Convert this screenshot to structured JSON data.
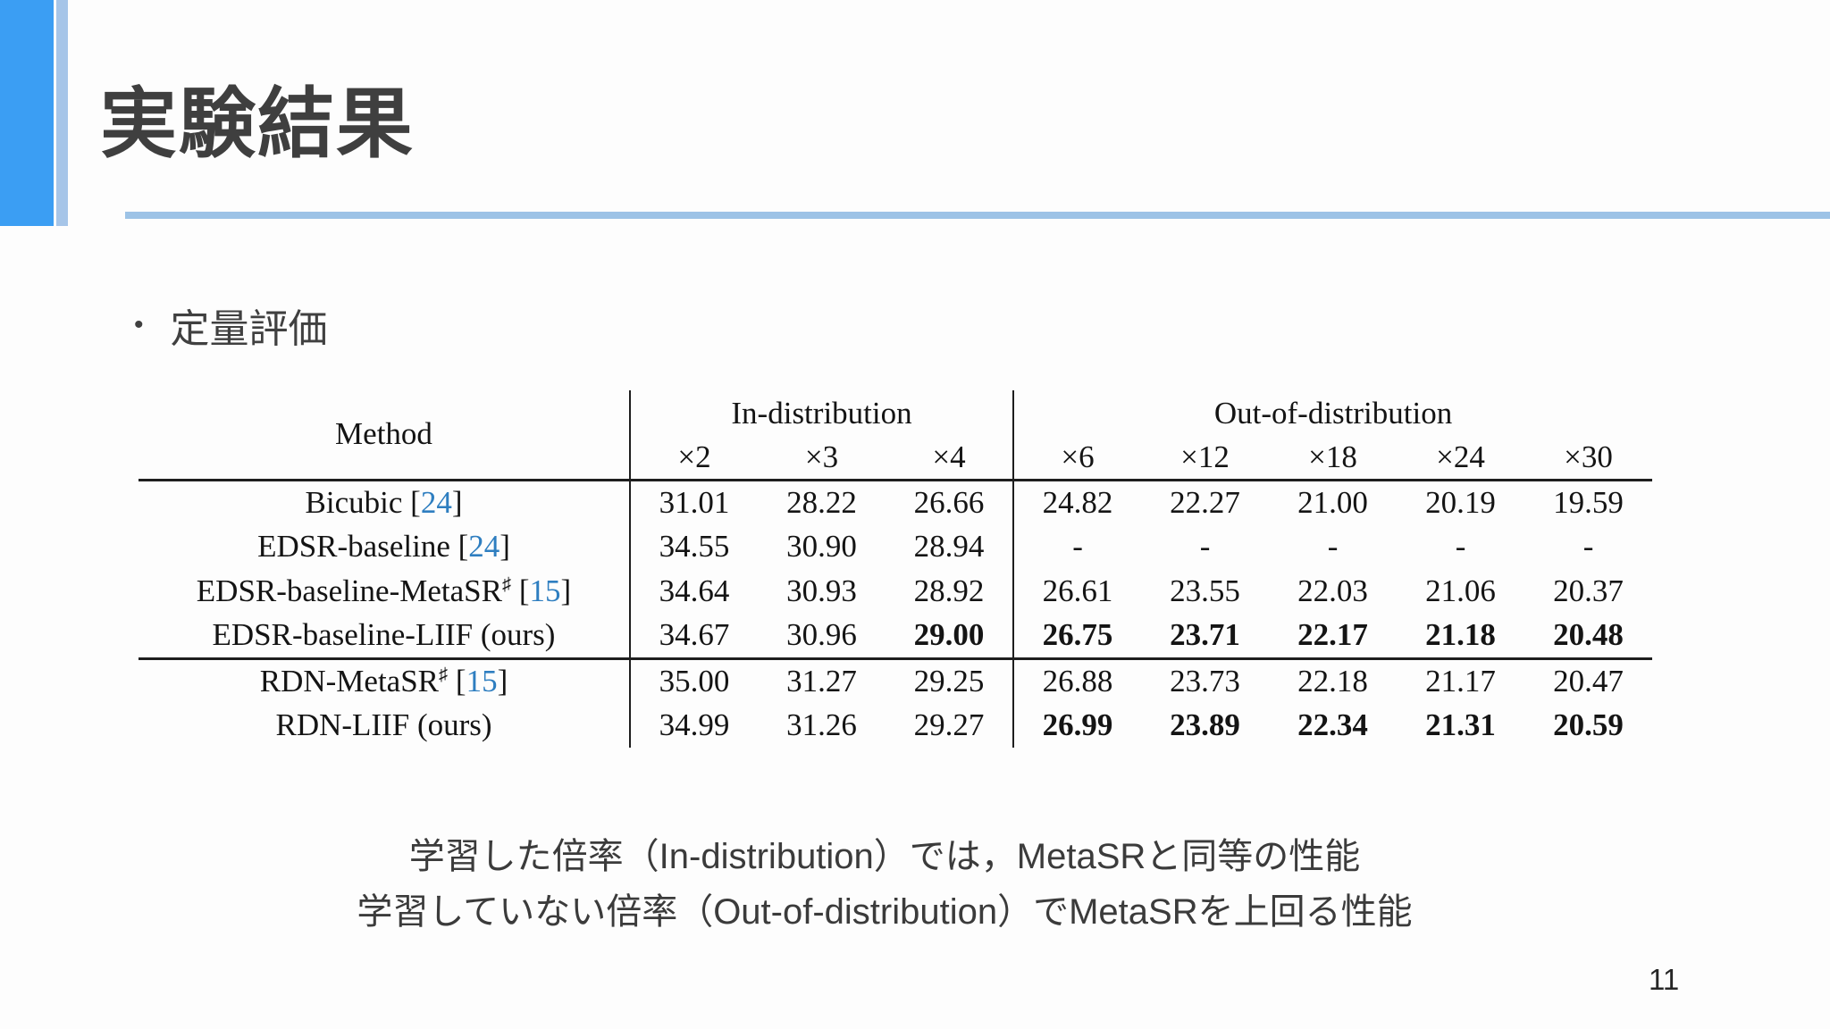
{
  "slide": {
    "title": "実験結果",
    "bullet_label": "定量評価",
    "caption_line1": "学習した倍率（In-distribution）では，MetaSRと同等の性能",
    "caption_line2": "学習していない倍率（Out-of-distribution）でMetaSRを上回る性能",
    "page_number": "11"
  },
  "colors": {
    "accent_bar_blue": "#3b9ef3",
    "accent_stripe_blue": "#a6c5e8",
    "title_underline_blue": "#9dc3e6",
    "citation_blue": "#2e7ec0",
    "title_text_gray": "#3f3f3f",
    "table_text_black": "#141414"
  },
  "table": {
    "method_header": "Method",
    "groups": [
      {
        "label": "In-distribution",
        "span": 3
      },
      {
        "label": "Out-of-distribution",
        "span": 5
      }
    ],
    "scale_headers": [
      "×2",
      "×3",
      "×4",
      "×6",
      "×12",
      "×18",
      "×24",
      "×30"
    ],
    "rows": [
      {
        "name": "Bicubic",
        "sup": "",
        "citation": "24",
        "suffix": "",
        "group_start": false,
        "values": [
          "31.01",
          "28.22",
          "26.66",
          "24.82",
          "22.27",
          "21.00",
          "20.19",
          "19.59"
        ],
        "bold": [
          false,
          false,
          false,
          false,
          false,
          false,
          false,
          false
        ]
      },
      {
        "name": "EDSR-baseline",
        "sup": "",
        "citation": "24",
        "suffix": "",
        "group_start": false,
        "values": [
          "34.55",
          "30.90",
          "28.94",
          "-",
          "-",
          "-",
          "-",
          "-"
        ],
        "bold": [
          false,
          false,
          false,
          false,
          false,
          false,
          false,
          false
        ]
      },
      {
        "name": "EDSR-baseline-MetaSR",
        "sup": "♯",
        "citation": "15",
        "suffix": "",
        "group_start": false,
        "values": [
          "34.64",
          "30.93",
          "28.92",
          "26.61",
          "23.55",
          "22.03",
          "21.06",
          "20.37"
        ],
        "bold": [
          false,
          false,
          false,
          false,
          false,
          false,
          false,
          false
        ]
      },
      {
        "name": "EDSR-baseline-LIIF",
        "sup": "",
        "citation": "",
        "suffix": "(ours)",
        "group_start": false,
        "values": [
          "34.67",
          "30.96",
          "29.00",
          "26.75",
          "23.71",
          "22.17",
          "21.18",
          "20.48"
        ],
        "bold": [
          false,
          false,
          true,
          true,
          true,
          true,
          true,
          true
        ]
      },
      {
        "name": "RDN-MetaSR",
        "sup": "♯",
        "citation": "15",
        "suffix": "",
        "group_start": true,
        "values": [
          "35.00",
          "31.27",
          "29.25",
          "26.88",
          "23.73",
          "22.18",
          "21.17",
          "20.47"
        ],
        "bold": [
          false,
          false,
          false,
          false,
          false,
          false,
          false,
          false
        ]
      },
      {
        "name": "RDN-LIIF",
        "sup": "",
        "citation": "",
        "suffix": "(ours)",
        "group_start": false,
        "values": [
          "34.99",
          "31.26",
          "29.27",
          "26.99",
          "23.89",
          "22.34",
          "21.31",
          "20.59"
        ],
        "bold": [
          false,
          false,
          false,
          true,
          true,
          true,
          true,
          true
        ]
      }
    ]
  }
}
